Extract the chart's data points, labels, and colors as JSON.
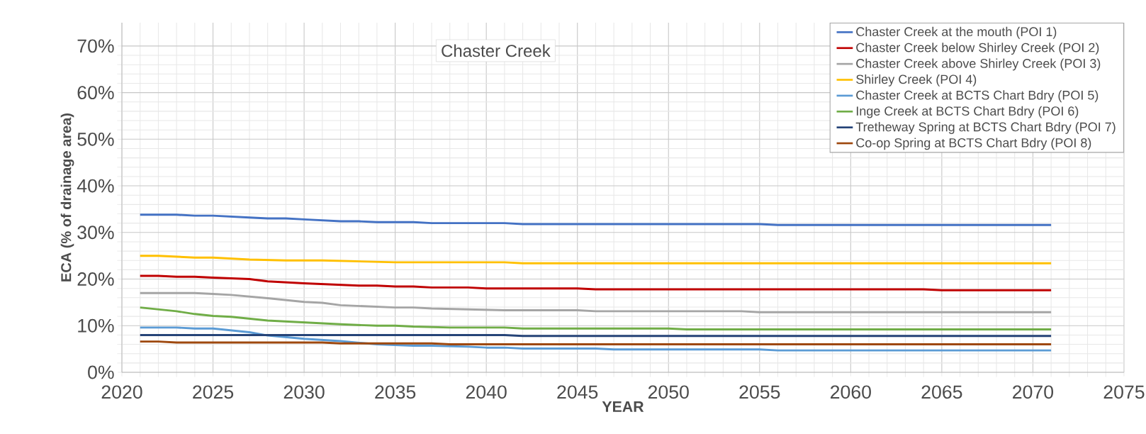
{
  "chart_data": {
    "type": "line",
    "title": "Chaster Creek",
    "xlabel": "YEAR",
    "ylabel": "ECA (% of drainage area)",
    "xlim": [
      2020,
      2075
    ],
    "xticks": [
      2020,
      2025,
      2030,
      2035,
      2040,
      2045,
      2050,
      2055,
      2060,
      2065,
      2070,
      2075
    ],
    "ylim": [
      0,
      75
    ],
    "yticks": [
      {
        "value": 0,
        "label": "0%"
      },
      {
        "value": 10,
        "label": "10%"
      },
      {
        "value": 20,
        "label": "20%"
      },
      {
        "value": 30,
        "label": "30%"
      },
      {
        "value": 40,
        "label": "40%"
      },
      {
        "value": 50,
        "label": "50%"
      },
      {
        "value": 60,
        "label": "60%"
      },
      {
        "value": 70,
        "label": "70%"
      }
    ],
    "grid": true,
    "legend": "top right",
    "marker": "none",
    "line_style": "solid",
    "series": [
      {
        "name": "Chaster Creek at the mouth (POI 1)",
        "color": "#4472c4",
        "x": [
          2021,
          2023,
          2024,
          2025,
          2027,
          2028,
          2029,
          2030,
          2032,
          2033,
          2034,
          2036,
          2037,
          2041,
          2042,
          2055,
          2056,
          2071
        ],
        "values": [
          33.8,
          33.8,
          33.6,
          33.6,
          33.2,
          33.0,
          33.0,
          32.8,
          32.4,
          32.4,
          32.2,
          32.2,
          32.0,
          32.0,
          31.8,
          31.8,
          31.6,
          31.6
        ]
      },
      {
        "name": "Chaster Creek below Shirley Creek (POI 2)",
        "color": "#c00000",
        "x": [
          2021,
          2022,
          2023,
          2024,
          2025,
          2027,
          2028,
          2030,
          2033,
          2034,
          2035,
          2036,
          2037,
          2039,
          2040,
          2045,
          2046,
          2064,
          2065,
          2071
        ],
        "values": [
          20.7,
          20.7,
          20.5,
          20.5,
          20.3,
          20.0,
          19.5,
          19.1,
          18.6,
          18.6,
          18.4,
          18.4,
          18.2,
          18.2,
          18.0,
          18.0,
          17.8,
          17.8,
          17.6,
          17.6
        ]
      },
      {
        "name": "Chaster Creek above Shirley Creek (POI 3)",
        "color": "#a5a5a5",
        "x": [
          2021,
          2024,
          2025,
          2026,
          2028,
          2030,
          2031,
          2032,
          2035,
          2036,
          2037,
          2039,
          2041,
          2045,
          2046,
          2054,
          2055,
          2071
        ],
        "values": [
          17.0,
          17.0,
          16.8,
          16.6,
          15.9,
          15.1,
          14.9,
          14.4,
          13.9,
          13.9,
          13.7,
          13.5,
          13.3,
          13.3,
          13.1,
          13.1,
          12.9,
          12.9
        ]
      },
      {
        "name": "Shirley Creek (POI 4)",
        "color": "#ffc000",
        "x": [
          2021,
          2022,
          2024,
          2025,
          2027,
          2029,
          2031,
          2033,
          2035,
          2041,
          2042,
          2071
        ],
        "values": [
          25.0,
          25.0,
          24.6,
          24.6,
          24.2,
          24.0,
          24.0,
          23.8,
          23.6,
          23.6,
          23.4,
          23.4
        ]
      },
      {
        "name": "Chaster Creek at BCTS Chart Bdry (POI 5)",
        "color": "#5b9bd5",
        "x": [
          2021,
          2023,
          2024,
          2025,
          2027,
          2028,
          2030,
          2032,
          2034,
          2036,
          2037,
          2039,
          2040,
          2041,
          2042,
          2046,
          2047,
          2055,
          2056,
          2071
        ],
        "values": [
          9.6,
          9.6,
          9.4,
          9.4,
          8.6,
          7.9,
          7.2,
          6.7,
          6.0,
          5.7,
          5.7,
          5.5,
          5.3,
          5.3,
          5.1,
          5.1,
          4.9,
          4.9,
          4.7,
          4.7
        ]
      },
      {
        "name": "Inge Creek at BCTS Chart Bdry (POI 6)",
        "color": "#70ad47",
        "x": [
          2021,
          2023,
          2024,
          2025,
          2026,
          2028,
          2030,
          2032,
          2034,
          2035,
          2036,
          2038,
          2041,
          2042,
          2050,
          2051,
          2071
        ],
        "values": [
          13.9,
          13.1,
          12.5,
          12.1,
          11.9,
          11.1,
          10.7,
          10.3,
          10.0,
          10.0,
          9.8,
          9.6,
          9.6,
          9.4,
          9.4,
          9.2,
          9.2
        ]
      },
      {
        "name": "Tretheway Spring at BCTS Chart Bdry (POI 7)",
        "color": "#264478",
        "x": [
          2021,
          2041,
          2042,
          2071
        ],
        "values": [
          8.0,
          8.0,
          7.8,
          7.8
        ]
      },
      {
        "name": "Co-op Spring at BCTS Chart Bdry (POI 8)",
        "color": "#9e480e",
        "x": [
          2021,
          2022,
          2023,
          2031,
          2032,
          2037,
          2038,
          2071
        ],
        "values": [
          6.6,
          6.6,
          6.4,
          6.4,
          6.2,
          6.2,
          6.0,
          6.0
        ]
      }
    ]
  }
}
